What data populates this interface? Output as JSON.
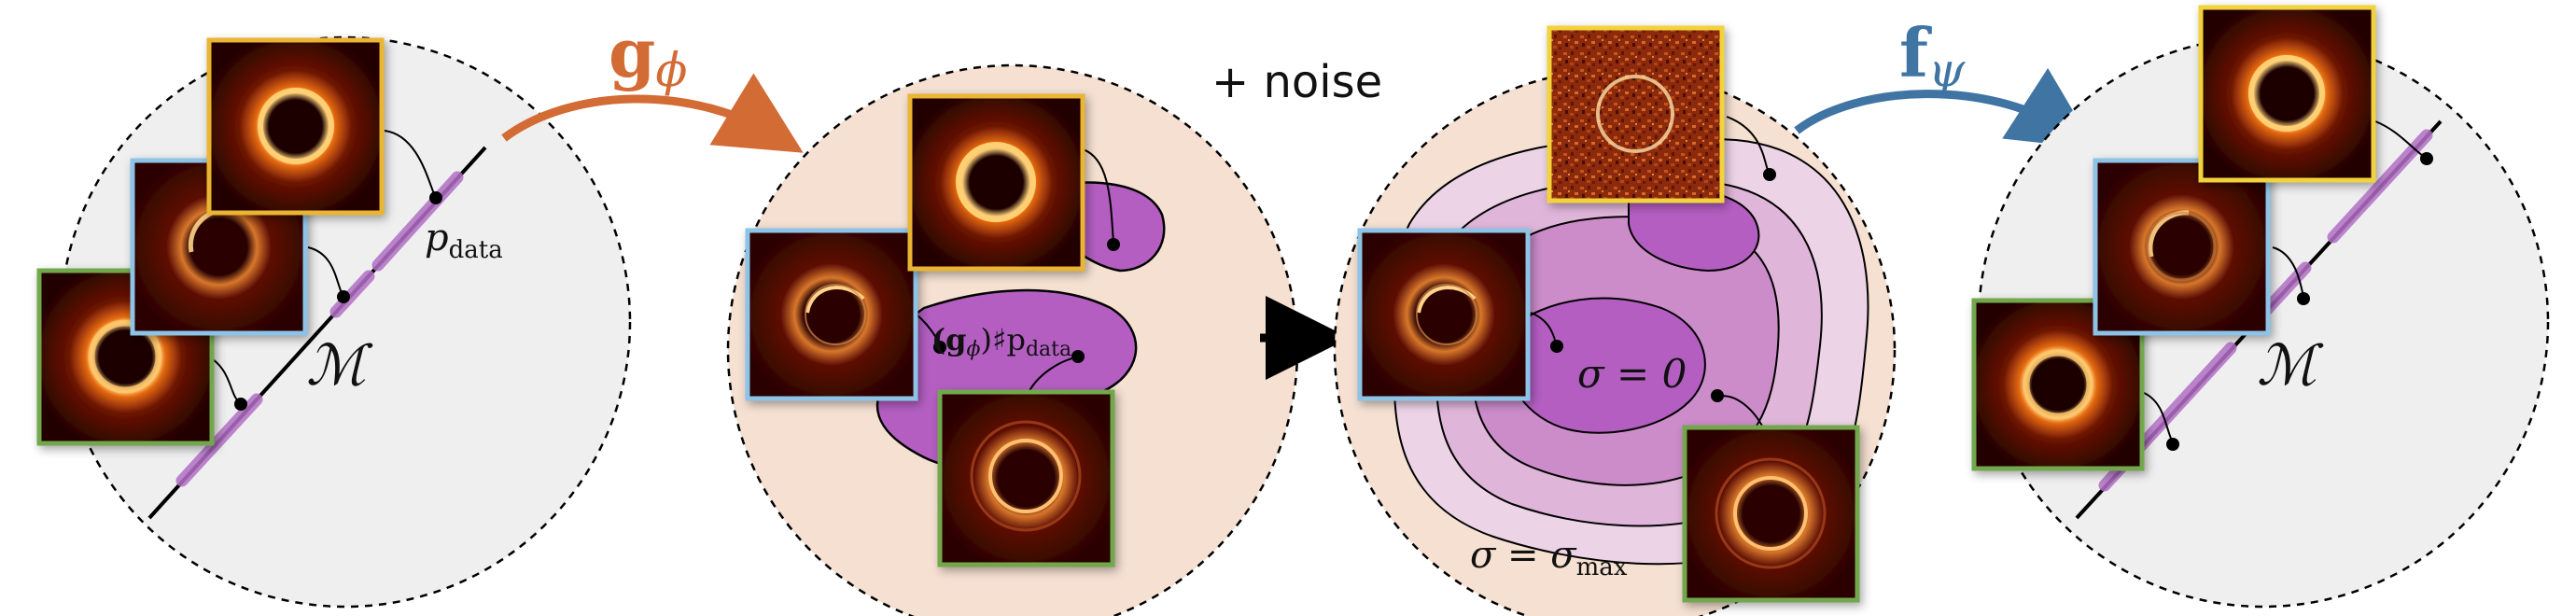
{
  "labels": {
    "g_map": "g",
    "g_sub": "ϕ",
    "f_map": "f",
    "f_sub": "ψ",
    "noise": "+ noise",
    "p_data": "p",
    "p_data_sub": "data",
    "manifold": "ℳ",
    "pushforward_g": "(g",
    "pushforward_phi": "ϕ",
    "pushforward_rest": ")♯p",
    "pushforward_sub": "data",
    "sigma_zero": "σ = 0",
    "sigma_max": "σ = σ",
    "sigma_max_sub": "max"
  },
  "colors": {
    "g_arrow": "#d36b35",
    "f_arrow": "#3f74a3",
    "frame_yellow": "#eab531",
    "frame_blue": "#8dc3e6",
    "frame_green": "#72a84b",
    "frame_yellow_noisy": "#f3d33a",
    "manifold_band": "#b36fc6",
    "pushforward_fill": "#b45ec2",
    "pushforward_region": "#f5e0d1",
    "data_region": "#efefef",
    "image_background": "#1f0302",
    "ring_color": "#ffa34a"
  },
  "icons": [
    "black-hole-image",
    "arrow-icon",
    "circle-region",
    "diffusion-level-sets"
  ]
}
